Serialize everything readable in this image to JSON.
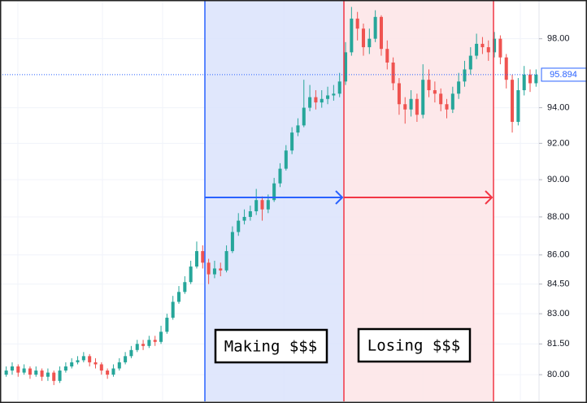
{
  "chart_data": {
    "type": "candlestick",
    "log_scale": true,
    "grid": true,
    "up_color": "#26a69a",
    "down_color": "#ef5350",
    "ylim": [
      78.72,
      100.32
    ],
    "yticks": [
      {
        "value": 80,
        "label": "80.00"
      },
      {
        "value": 81.5,
        "label": "81.50"
      },
      {
        "value": 83,
        "label": "83.00"
      },
      {
        "value": 84.5,
        "label": "84.50"
      },
      {
        "value": 86,
        "label": "86.00"
      },
      {
        "value": 88,
        "label": "88.00"
      },
      {
        "value": 90,
        "label": "90.00"
      },
      {
        "value": 92,
        "label": "92.00"
      },
      {
        "value": 94,
        "label": "94.00"
      },
      {
        "value": 98,
        "label": "98.00"
      }
    ],
    "annotations": [
      "Making $$$",
      "Losing $$$"
    ],
    "open": [
      80.0,
      80.2,
      80.4,
      80.1,
      80.3,
      80.0,
      80.2,
      79.9,
      80.1,
      79.7,
      80.2,
      80.4,
      80.6,
      80.7,
      80.9,
      80.6,
      80.5,
      80.2,
      80.0,
      80.3,
      80.6,
      80.9,
      81.2,
      81.5,
      81.4,
      81.7,
      81.6,
      82.1,
      82.8,
      83.6,
      84.1,
      84.6,
      85.4,
      86.2,
      85.6,
      85.0,
      85.3,
      85.2,
      86.2,
      87.2,
      87.8,
      88.0,
      88.3,
      88.9,
      88.4,
      88.9,
      89.8,
      90.6,
      91.6,
      92.6,
      93.0,
      94.0,
      94.6,
      94.3,
      94.5,
      94.7,
      94.8,
      95.5,
      97.2,
      99.2,
      98.6,
      97.5,
      98.0,
      99.3,
      97.4,
      96.6,
      95.4,
      94.2,
      93.9,
      94.5,
      93.6,
      95.6,
      95.0,
      94.8,
      94.2,
      93.9,
      94.8,
      95.5,
      96.2,
      97.0,
      97.7,
      97.5,
      97.2,
      98.0,
      96.9,
      95.6,
      93.2,
      95.0,
      95.9,
      95.4
    ],
    "high": [
      80.4,
      80.6,
      80.5,
      80.5,
      80.4,
      80.4,
      80.3,
      80.3,
      80.2,
      80.4,
      80.6,
      80.8,
      80.9,
      81.1,
      81.0,
      80.8,
      80.6,
      80.3,
      80.5,
      80.8,
      81.1,
      81.4,
      81.7,
      81.7,
      81.9,
      81.9,
      82.4,
      83.0,
      83.9,
      84.4,
      84.9,
      85.7,
      86.7,
      86.5,
      85.8,
      85.7,
      85.6,
      86.5,
      87.5,
      88.2,
      88.4,
      88.6,
      89.5,
      89.1,
      89.2,
      90.1,
      90.9,
      91.9,
      92.9,
      93.4,
      95.6,
      95.3,
      95.0,
      95.0,
      95.2,
      95.3,
      96.0,
      97.8,
      99.9,
      99.6,
      98.9,
      98.6,
      99.7,
      99.4,
      97.9,
      96.9,
      95.7,
      94.6,
      95.0,
      94.8,
      96.5,
      96.2,
      95.5,
      95.1,
      94.5,
      95.2,
      96.0,
      96.7,
      97.5,
      98.3,
      98.1,
      97.9,
      98.4,
      98.2,
      97.1,
      95.9,
      95.7,
      96.4,
      96.2,
      96.2
    ],
    "low": [
      79.9,
      80.0,
      79.9,
      80.0,
      79.8,
      79.9,
      79.7,
      79.7,
      79.5,
      79.6,
      80.1,
      80.3,
      80.5,
      80.6,
      80.4,
      80.3,
      80.0,
      79.8,
      79.9,
      80.2,
      80.5,
      80.8,
      81.1,
      81.2,
      81.3,
      81.4,
      81.5,
      82.0,
      82.7,
      83.5,
      84.0,
      84.5,
      85.3,
      85.3,
      84.5,
      84.8,
      84.9,
      85.1,
      86.1,
      87.0,
      87.6,
      87.8,
      88.1,
      87.8,
      88.2,
      88.8,
      89.6,
      90.5,
      91.4,
      92.4,
      92.9,
      93.8,
      93.9,
      94.0,
      94.2,
      94.4,
      94.6,
      95.3,
      97.0,
      97.9,
      97.0,
      97.1,
      97.8,
      97.0,
      96.2,
      95.0,
      93.6,
      93.1,
      93.5,
      93.2,
      93.4,
      94.6,
      94.3,
      93.8,
      93.4,
      93.7,
      94.5,
      95.2,
      95.9,
      96.8,
      97.1,
      96.7,
      96.9,
      96.5,
      95.1,
      92.6,
      93.0,
      94.7,
      94.9,
      95.2
    ],
    "close": [
      80.2,
      80.4,
      80.1,
      80.3,
      80.0,
      80.2,
      79.9,
      80.1,
      79.7,
      80.2,
      80.4,
      80.6,
      80.7,
      80.9,
      80.6,
      80.5,
      80.2,
      80.0,
      80.3,
      80.6,
      80.9,
      81.2,
      81.5,
      81.4,
      81.7,
      81.6,
      82.1,
      82.8,
      83.6,
      84.1,
      84.6,
      85.4,
      86.2,
      85.6,
      85.0,
      85.3,
      85.2,
      86.2,
      87.2,
      87.8,
      88.0,
      88.3,
      88.9,
      88.4,
      88.9,
      89.8,
      90.6,
      91.6,
      92.6,
      93.0,
      94.0,
      94.6,
      94.3,
      94.5,
      94.7,
      94.8,
      95.5,
      97.2,
      99.2,
      98.6,
      97.5,
      98.0,
      99.3,
      97.4,
      96.6,
      95.4,
      94.2,
      93.9,
      94.5,
      93.6,
      95.6,
      95.0,
      94.8,
      94.2,
      93.9,
      94.8,
      95.5,
      96.2,
      97.0,
      97.7,
      97.5,
      97.2,
      98.0,
      96.9,
      95.6,
      93.2,
      95.0,
      95.9,
      95.4,
      95.894
    ]
  }
}
